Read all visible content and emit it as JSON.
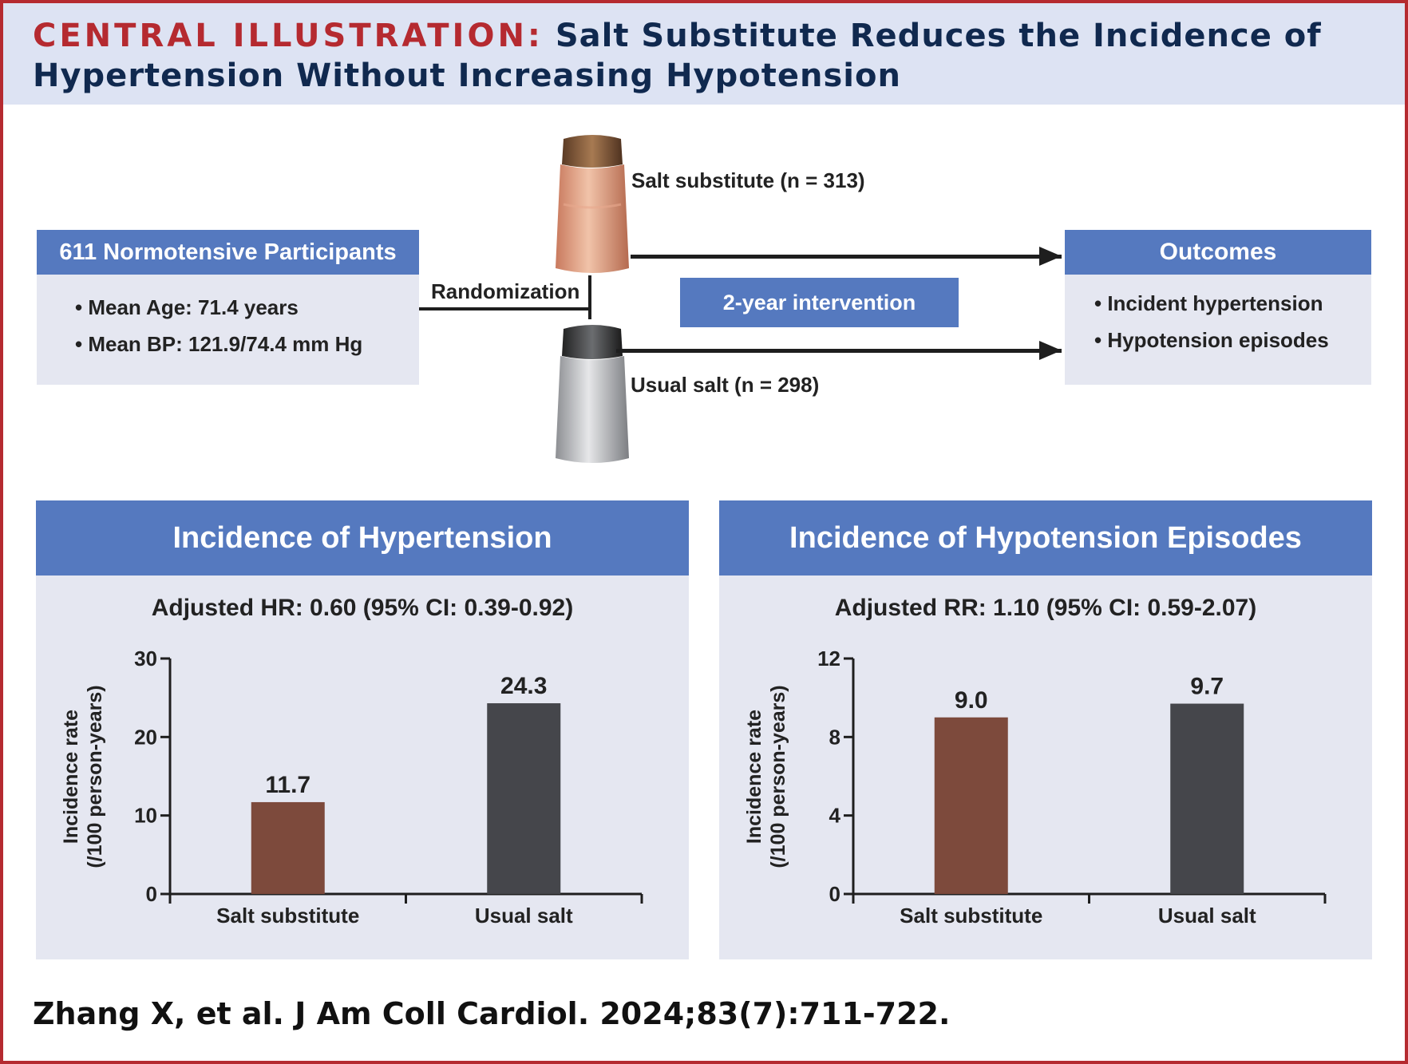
{
  "header": {
    "kicker": "CENTRAL ILLUSTRATION:",
    "title_line1": "Salt Substitute Reduces the Incidence of",
    "title_line2": "Hypertension Without Increasing Hypotension"
  },
  "participants": {
    "title": "611 Normotensive Participants",
    "bullets": [
      "• Mean Age: 71.4 years",
      "• Mean BP: 121.9/74.4 mm Hg"
    ]
  },
  "randomization_label": "Randomization",
  "arms": {
    "salt_substitute": "Salt substitute (n = 313)",
    "usual_salt": "Usual salt (n = 298)"
  },
  "intervention_label": "2-year intervention",
  "outcomes": {
    "title": "Outcomes",
    "bullets": [
      "• Incident hypertension",
      "• Hypotension episodes"
    ]
  },
  "colors": {
    "brand_red": "#b52a30",
    "navy": "#10294f",
    "panel_blue": "#5579bf",
    "panel_bg": "#e5e7f1",
    "salt_substitute_bar": "#7d4a3c",
    "usual_salt_bar": "#45464b"
  },
  "icons": [
    "salt-substitute-shaker-icon",
    "usual-salt-shaker-icon"
  ],
  "chart_data": [
    {
      "type": "bar",
      "title": "Incidence of Hypertension",
      "subtitle": "Adjusted HR: 0.60 (95% CI: 0.39-0.92)",
      "ylabel_line1": "Incidence rate",
      "ylabel_line2": "(/100 person-years)",
      "categories": [
        "Salt substitute",
        "Usual salt"
      ],
      "values": [
        11.7,
        24.3
      ],
      "value_labels": [
        "11.7",
        "24.3"
      ],
      "ylim": [
        0,
        30
      ],
      "yticks": [
        0,
        10,
        20,
        30
      ],
      "ytick_labels": [
        "0",
        "10",
        "20",
        "30"
      ],
      "bar_colors": [
        "#7d4a3c",
        "#45464b"
      ],
      "grid": false,
      "legend": "none"
    },
    {
      "type": "bar",
      "title": "Incidence of Hypotension Episodes",
      "subtitle": "Adjusted RR: 1.10 (95% CI: 0.59-2.07)",
      "ylabel_line1": "Incidence rate",
      "ylabel_line2": "(/100 person-years)",
      "categories": [
        "Salt substitute",
        "Usual salt"
      ],
      "values": [
        9.0,
        9.7
      ],
      "value_labels": [
        "9.0",
        "9.7"
      ],
      "ylim": [
        0,
        12
      ],
      "yticks": [
        0,
        4,
        8,
        12
      ],
      "ytick_labels": [
        "0",
        "4",
        "8",
        "12"
      ],
      "bar_colors": [
        "#7d4a3c",
        "#45464b"
      ],
      "grid": false,
      "legend": "none"
    }
  ],
  "citation": "Zhang X, et al. J Am Coll Cardiol. 2024;83(7):711-722."
}
